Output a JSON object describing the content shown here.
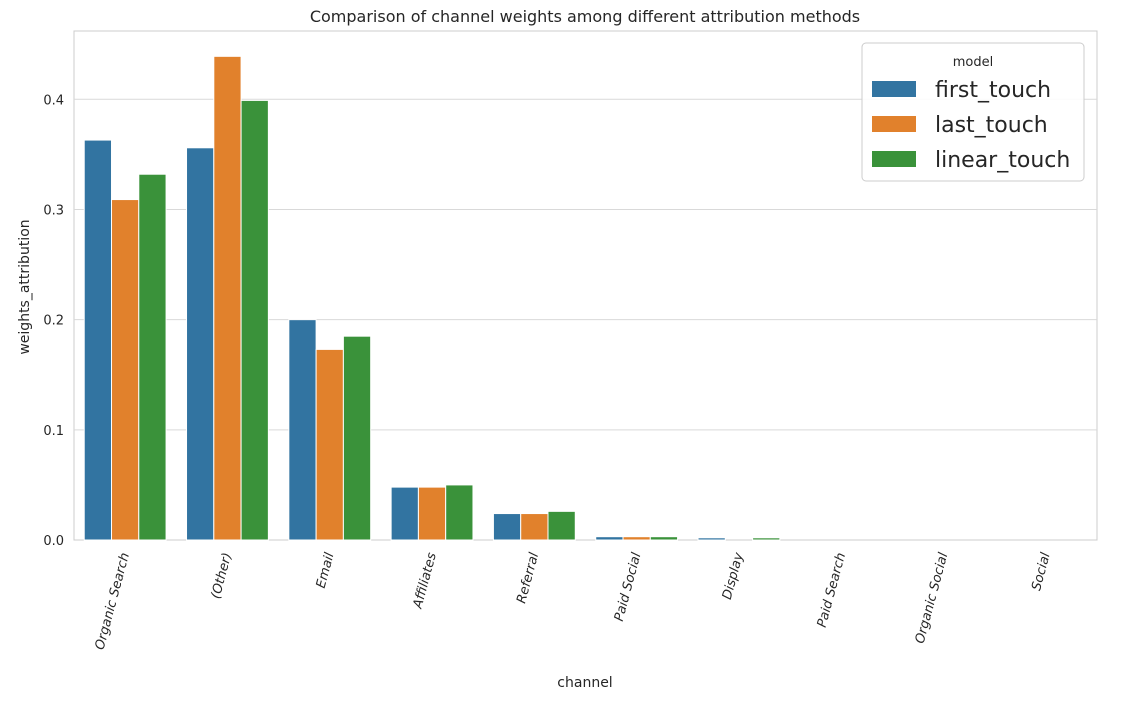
{
  "chart_data": {
    "type": "bar",
    "title": "Comparison of channel weights among different attribution methods",
    "xlabel": "channel",
    "ylabel": "weights_attribution",
    "ylim": [
      0,
      0.462
    ],
    "yticks": [
      0.0,
      0.1,
      0.2,
      0.3,
      0.4
    ],
    "ytick_labels": [
      "0.0",
      "0.1",
      "0.2",
      "0.3",
      "0.4"
    ],
    "xtick_rotation_deg": -75,
    "grid": "horizontal",
    "style": "seaborn-whitegrid",
    "categories": [
      "Organic Search",
      "(Other)",
      "Email",
      "Affiliates",
      "Referral",
      "Paid Social",
      "Display",
      "Paid Search",
      "Organic Social",
      "Social"
    ],
    "series": [
      {
        "name": "first_touch",
        "color": "#3274a1",
        "values": [
          0.363,
          0.356,
          0.2,
          0.048,
          0.024,
          0.003,
          0.002,
          0.0,
          0.0,
          0.0
        ]
      },
      {
        "name": "last_touch",
        "color": "#e1812c",
        "values": [
          0.309,
          0.439,
          0.173,
          0.048,
          0.024,
          0.003,
          0.0,
          0.0,
          0.0,
          0.0
        ]
      },
      {
        "name": "linear_touch",
        "color": "#3a923a",
        "values": [
          0.332,
          0.399,
          0.185,
          0.05,
          0.026,
          0.003,
          0.002,
          0.0,
          0.0,
          0.0
        ]
      }
    ],
    "legend": {
      "title": "model",
      "position": "top-right"
    }
  },
  "colors": {
    "grid": "#d9d9d9",
    "axes_edge": "#cccccc",
    "text": "#262626",
    "bar_edge": "#ffffff"
  }
}
